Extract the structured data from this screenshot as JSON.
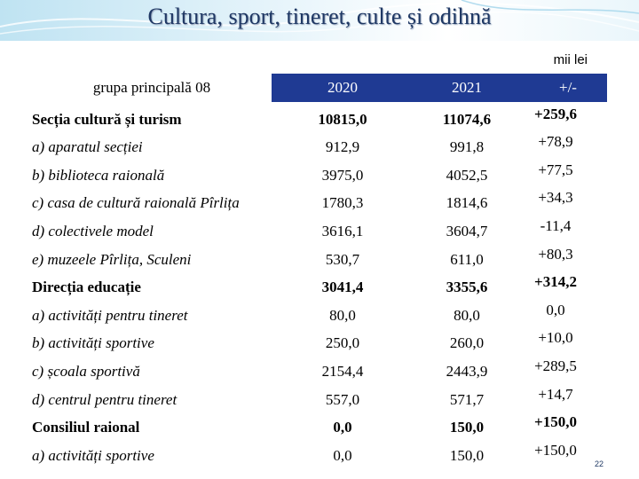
{
  "slide": {
    "title": "Cultura, sport, tineret, culte și odihnă",
    "unit": "mii lei",
    "page_number": "22"
  },
  "table": {
    "header": {
      "group": "grupa principală 08",
      "col_2020": "2020",
      "col_2021": "2021",
      "col_diff": "+/-"
    },
    "rows": [
      {
        "label": "Secția cultură și turism",
        "v2020": "10815,0",
        "v2021": "11074,6",
        "diff": "+259,6",
        "kind": "main"
      },
      {
        "label": "a) aparatul secției",
        "v2020": "912,9",
        "v2021": "991,8",
        "diff": "+78,9",
        "kind": "item"
      },
      {
        "label": "b) biblioteca raională",
        "v2020": "3975,0",
        "v2021": "4052,5",
        "diff": "+77,5",
        "kind": "item"
      },
      {
        "label": "c) casa de cultură raională Pîrlița",
        "v2020": "1780,3",
        "v2021": "1814,6",
        "diff": "+34,3",
        "kind": "item"
      },
      {
        "label": "d) colectivele model",
        "v2020": "3616,1",
        "v2021": "3604,7",
        "diff": "-11,4",
        "kind": "item"
      },
      {
        "label": "e) muzeele Pîrlița, Sculeni",
        "v2020": "530,7",
        "v2021": "611,0",
        "diff": "+80,3",
        "kind": "item"
      },
      {
        "label": "Direcția educație",
        "v2020": "3041,4",
        "v2021": "3355,6",
        "diff": "+314,2",
        "kind": "main"
      },
      {
        "label": "a) activități pentru tineret",
        "v2020": "80,0",
        "v2021": "80,0",
        "diff": "0,0",
        "kind": "item"
      },
      {
        "label": "b) activități sportive",
        "v2020": "250,0",
        "v2021": "260,0",
        "diff": "+10,0",
        "kind": "item"
      },
      {
        "label": "c) școala sportivă",
        "v2020": "2154,4",
        "v2021": "2443,9",
        "diff": "+289,5",
        "kind": "item"
      },
      {
        "label": "d) centrul pentru tineret",
        "v2020": "557,0",
        "v2021": "571,7",
        "diff": "+14,7",
        "kind": "item"
      },
      {
        "label": "Consiliul raional",
        "v2020": "0,0",
        "v2021": "150,0",
        "diff": "+150,0",
        "kind": "main"
      },
      {
        "label": "a) activități sportive",
        "v2020": "0,0",
        "v2021": "150,0",
        "diff": "+150,0",
        "kind": "item"
      }
    ]
  }
}
